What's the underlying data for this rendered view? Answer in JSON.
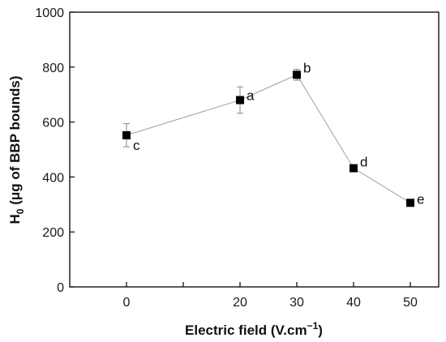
{
  "chart_data": {
    "type": "scatter",
    "xlabel": "Electric field (V.cm",
    "xlabel_sup": "−1",
    "xlabel_end": ")",
    "ylabel": "H",
    "ylabel_sub": "0",
    "ylabel_rest": " (μg of BBP bounds)",
    "xlim": [
      -10,
      55
    ],
    "ylim": [
      0,
      1000
    ],
    "xticks": [
      0,
      10,
      20,
      30,
      40,
      50
    ],
    "yticks": [
      0,
      200,
      400,
      600,
      800,
      1000
    ],
    "xtick_labels": [
      "0",
      "",
      "20",
      "30",
      "40",
      "50"
    ],
    "ytick_labels": [
      "0",
      "200",
      "400",
      "600",
      "800",
      "1000"
    ],
    "series": [
      {
        "x": [
          0,
          20,
          30,
          40,
          50
        ],
        "y": [
          552,
          680,
          772,
          432,
          306
        ],
        "error": [
          42,
          48,
          20,
          10,
          8
        ],
        "labels": [
          "c",
          "a",
          "b",
          "d",
          "e"
        ],
        "marker": "square",
        "line_color": "#a0a0a0",
        "marker_color": "#000000"
      }
    ],
    "grid": false
  }
}
